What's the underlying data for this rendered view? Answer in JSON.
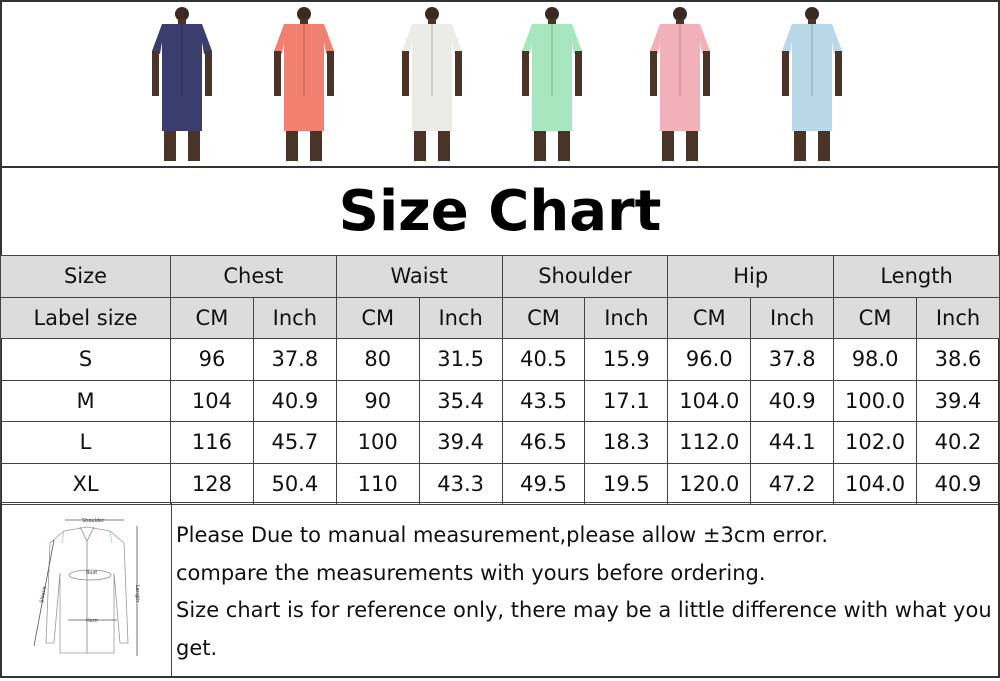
{
  "title": "Size Chart",
  "models": [
    {
      "color": "#3a3d6e"
    },
    {
      "color": "#f08070"
    },
    {
      "color": "#ecece6"
    },
    {
      "color": "#a8e6c0"
    },
    {
      "color": "#f2b0b8"
    },
    {
      "color": "#b8d8e8"
    }
  ],
  "header": {
    "size": "Size",
    "label_size": "Label size",
    "cm": "CM",
    "inch": "Inch",
    "groups": [
      "Chest",
      "Waist",
      "Shoulder",
      "Hip",
      "Length"
    ]
  },
  "rows": [
    {
      "size": "S",
      "values": [
        "96",
        "37.8",
        "80",
        "31.5",
        "40.5",
        "15.9",
        "96.0",
        "37.8",
        "98.0",
        "38.6"
      ]
    },
    {
      "size": "M",
      "values": [
        "104",
        "40.9",
        "90",
        "35.4",
        "43.5",
        "17.1",
        "104.0",
        "40.9",
        "100.0",
        "39.4"
      ]
    },
    {
      "size": "L",
      "values": [
        "116",
        "45.7",
        "100",
        "39.4",
        "46.5",
        "18.3",
        "112.0",
        "44.1",
        "102.0",
        "40.2"
      ]
    },
    {
      "size": "XL",
      "values": [
        "128",
        "50.4",
        "110",
        "43.3",
        "49.5",
        "19.5",
        "120.0",
        "47.2",
        "104.0",
        "40.9"
      ]
    }
  ],
  "diagram": {
    "shoulder": "Shoulder",
    "bust": "Bust",
    "sleeve": "Sleeve",
    "length": "Length",
    "hem": "Hem"
  },
  "notes": [
    "Please Due to manual measurement,please allow ±3cm error.",
    "compare the measurements with yours before ordering.",
    "Size chart is for reference only,  there may be a little difference with what you",
    "get."
  ]
}
